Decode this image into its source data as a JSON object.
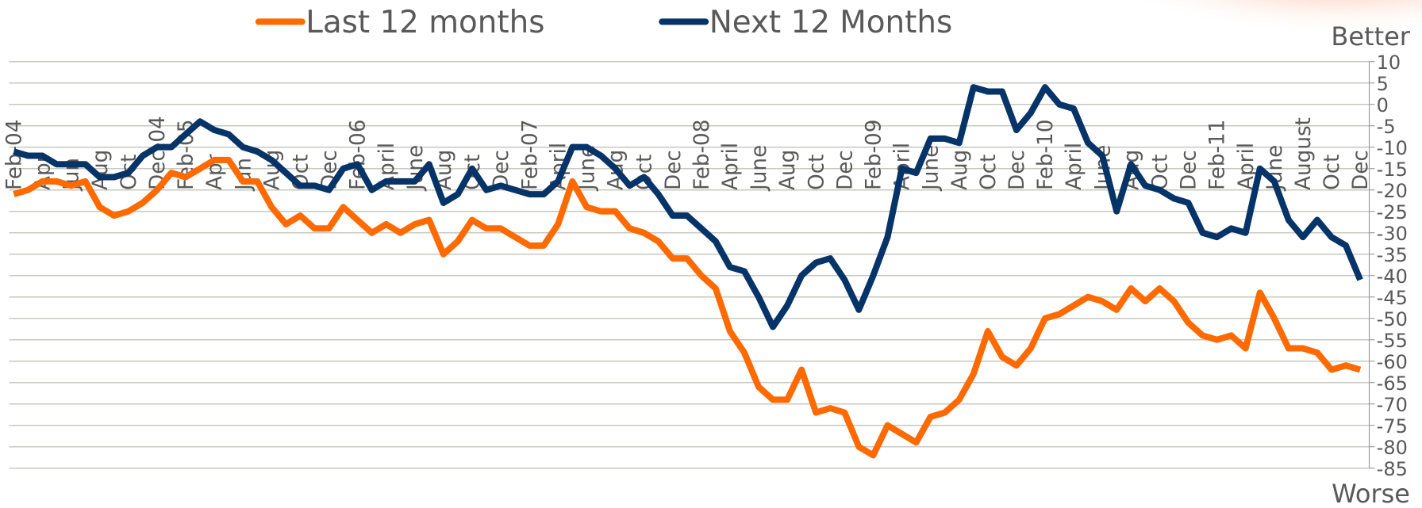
{
  "chart_data": {
    "type": "line",
    "categories": [
      "Feb-04",
      null,
      "Apr",
      null,
      "Jun",
      null,
      "Aug",
      null,
      "Oct",
      null,
      "Dec-04",
      null,
      "Feb-05",
      null,
      "Apr",
      null,
      "Jun",
      null,
      "Aug",
      null,
      "Oct",
      null,
      "Dec",
      null,
      "Feb-06",
      null,
      "April",
      null,
      "June",
      null,
      "Aug",
      null,
      "Oct",
      null,
      "Dec",
      null,
      "Feb-07",
      null,
      "April",
      null,
      "June",
      null,
      "Aug",
      null,
      "Oct",
      null,
      "Dec",
      null,
      "Feb-08",
      null,
      "April",
      null,
      "June",
      null,
      "Aug",
      null,
      "Oct",
      null,
      "Dec",
      null,
      "Feb-09",
      null,
      "April",
      null,
      "June",
      null,
      "Aug",
      null,
      "Oct",
      null,
      "Dec",
      null,
      "Feb-10",
      null,
      "April",
      null,
      "June",
      null,
      "Aug",
      null,
      "Oct",
      null,
      "Dec",
      null,
      "Feb-11",
      null,
      "April",
      null,
      "June",
      null,
      "August",
      null,
      "Oct",
      null,
      "Dec"
    ],
    "series": [
      {
        "name": "Last 12 months",
        "color": "#ff6a00",
        "values": [
          -21,
          -20,
          -18,
          -18,
          -19,
          -18,
          -24,
          -26,
          -25,
          -23,
          -20,
          -16,
          -17,
          -15,
          -13,
          -13,
          -18,
          -18,
          -24,
          -28,
          -26,
          -29,
          -29,
          -24,
          -27,
          -30,
          -28,
          -30,
          -28,
          -27,
          -35,
          -32,
          -27,
          -29,
          -29,
          -31,
          -33,
          -33,
          -28,
          -18,
          -24,
          -25,
          -25,
          -29,
          -30,
          -32,
          -36,
          -36,
          -40,
          -43,
          -53,
          -58,
          -66,
          -69,
          -69,
          -62,
          -72,
          -71,
          -72,
          -80,
          -82,
          -75,
          -77,
          -79,
          -73,
          -72,
          -69,
          -63,
          -53,
          -59,
          -61,
          -57,
          -50,
          -49,
          -47,
          -45,
          -46,
          -48,
          -43,
          -46,
          -43,
          -46,
          -51,
          -54,
          -55,
          -54,
          -57,
          -44,
          -50,
          -57,
          -57,
          -58,
          -62,
          -61,
          -62
        ]
      },
      {
        "name": "Next 12 Months",
        "color": "#063468",
        "values": [
          -11,
          -12,
          -12,
          -14,
          -14,
          -14,
          -17,
          -17,
          -16,
          -12,
          -10,
          -10,
          -7,
          -4,
          -6,
          -7,
          -10,
          -11,
          -13,
          -16,
          -19,
          -19,
          -20,
          -15,
          -14,
          -20,
          -18,
          -18,
          -18,
          -14,
          -23,
          -21,
          -15,
          -20,
          -19,
          -20,
          -21,
          -21,
          -18,
          -10,
          -10,
          -12,
          -15,
          -19,
          -17,
          -21,
          -26,
          -26,
          -29,
          -32,
          -38,
          -39,
          -45,
          -52,
          -47,
          -40,
          -37,
          -36,
          -41,
          -48,
          -40,
          -31,
          -15,
          -16,
          -8,
          -8,
          -9,
          4,
          3,
          3,
          -6,
          -2,
          4,
          0,
          -1,
          -9,
          -12,
          -25,
          -14,
          -19,
          -20,
          -22,
          -23,
          -30,
          -31,
          -29,
          -30,
          -15,
          -18,
          -27,
          -31,
          -27,
          -31,
          -33,
          -41
        ]
      }
    ],
    "ylim": [
      -85,
      10
    ],
    "yticks": [
      10,
      5,
      0,
      -5,
      -10,
      -15,
      -20,
      -25,
      -30,
      -35,
      -40,
      -45,
      -50,
      -55,
      -60,
      -65,
      -70,
      -75,
      -80,
      -85
    ],
    "grid": true,
    "y_axis_side": "right",
    "legend": "top",
    "annotations": [
      "Better",
      "Worse"
    ]
  }
}
